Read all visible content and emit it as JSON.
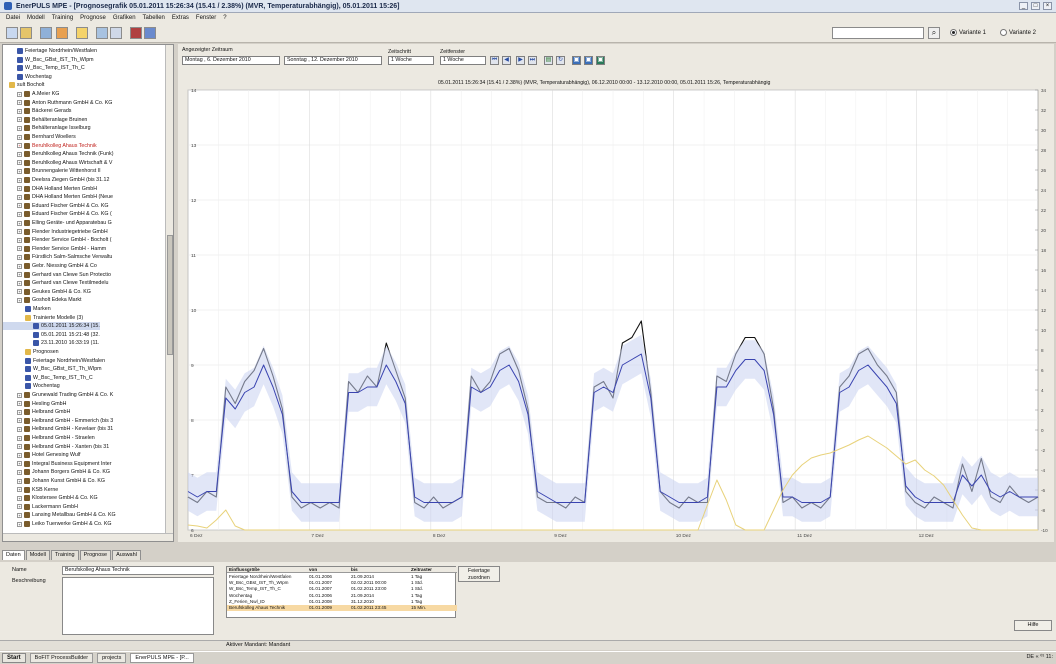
{
  "window": {
    "title": "EnerPULS MPE - [Prognosegrafik 05.01.2011 15:26:34 (15.41 / 2.38%) (MVR, Temperaturabhängig), 05.01.2011 15:26]"
  },
  "menu": [
    "Datei",
    "Modell",
    "Training",
    "Prognose",
    "Grafiken",
    "Tabellen",
    "Extras",
    "Fenster",
    "?"
  ],
  "toolbar": {
    "radio1": "Variante 1",
    "radio2": "Variante 2"
  },
  "tree": [
    {
      "label": "Feiertage Nordrhein/Westfalen",
      "type": "doc",
      "indent": 1
    },
    {
      "label": "W_Bsc_GBst_IST_Th_WIpm",
      "type": "doc",
      "indent": 1
    },
    {
      "label": "W_Bsc_Temp_IST_Th_C",
      "type": "doc",
      "indent": 1
    },
    {
      "label": "Wochentag",
      "type": "doc",
      "indent": 1
    },
    {
      "label": "sult Bocholt",
      "type": "folder",
      "indent": 0
    },
    {
      "label": "A.Meier KG",
      "type": "item",
      "indent": 1
    },
    {
      "label": "Anton Ruthmann GmbH & Co. KG",
      "type": "item",
      "indent": 1
    },
    {
      "label": "Bäckerei Gerads",
      "type": "item",
      "indent": 1
    },
    {
      "label": "Behälteranlage Bruinen",
      "type": "item",
      "indent": 1
    },
    {
      "label": "Behälteranlage Isselburg",
      "type": "item",
      "indent": 1
    },
    {
      "label": "Bernhard Woellers",
      "type": "item",
      "indent": 1
    },
    {
      "label": "Beruhlkolleg Ahaus Technik",
      "type": "item",
      "indent": 1,
      "hl": true
    },
    {
      "label": "Beruhlkolleg Ahaus Technik (Funk)",
      "type": "item",
      "indent": 1
    },
    {
      "label": "Beruhlkolleg Ahaus Wirtschaft & V",
      "type": "item",
      "indent": 1
    },
    {
      "label": "Brunnengalerie Wittenhorst II",
      "type": "item",
      "indent": 1
    },
    {
      "label": "Deelsra Ziegen GmbH (bis 31.12",
      "type": "item",
      "indent": 1
    },
    {
      "label": "DHA Holland Merten GmbH",
      "type": "item",
      "indent": 1
    },
    {
      "label": "DHA Holland Merten GmbH (Neue",
      "type": "item",
      "indent": 1
    },
    {
      "label": "Eduard Fischer GmbH & Co. KG",
      "type": "item",
      "indent": 1
    },
    {
      "label": "Eduard Fischer GmbH & Co. KG (",
      "type": "item",
      "indent": 1
    },
    {
      "label": "Elling Geräte- und Apparatebau G",
      "type": "item",
      "indent": 1
    },
    {
      "label": "Flender Industriegetriebe GmbH",
      "type": "item",
      "indent": 1
    },
    {
      "label": "Flender Service GmbH - Bocholt (",
      "type": "item",
      "indent": 1
    },
    {
      "label": "Flender Service GmbH - Hamm",
      "type": "item",
      "indent": 1
    },
    {
      "label": "Fürstlich Salm-Salmsche Verwaltu",
      "type": "item",
      "indent": 1
    },
    {
      "label": "Gebr. Niessing GmbH & Co",
      "type": "item",
      "indent": 1
    },
    {
      "label": "Gerhard van Clewe Sun Protectio",
      "type": "item",
      "indent": 1
    },
    {
      "label": "Gerhard van Clewe Textilmedelu",
      "type": "item",
      "indent": 1
    },
    {
      "label": "Geukes GmbH & Co. KG",
      "type": "item",
      "indent": 1
    },
    {
      "label": "Gosholt Edeka Markt",
      "type": "item",
      "indent": 1
    },
    {
      "label": "Marken",
      "type": "doc",
      "indent": 2
    },
    {
      "label": "Trainierte Modelle (3)",
      "type": "folder",
      "indent": 2
    },
    {
      "label": "05.01.2011 15:26:34 (15.",
      "type": "doc",
      "indent": 3,
      "sel": true
    },
    {
      "label": "05.01.2011 15:21:48 (32.",
      "type": "doc",
      "indent": 3
    },
    {
      "label": "23.11.2010 16:33:19 (11.",
      "type": "doc",
      "indent": 3
    },
    {
      "label": "Prognosen",
      "type": "folder",
      "indent": 2
    },
    {
      "label": "Feiertage Nordrhein/Westfalen",
      "type": "doc",
      "indent": 2
    },
    {
      "label": "W_Bsc_GBst_IST_Th_WIpm",
      "type": "doc",
      "indent": 2
    },
    {
      "label": "W_Bsc_Temp_IST_Th_C",
      "type": "doc",
      "indent": 2
    },
    {
      "label": "Wochentag",
      "type": "doc",
      "indent": 2
    },
    {
      "label": "Grunewald Trading GmbH & Co. K",
      "type": "item",
      "indent": 1
    },
    {
      "label": "Hesling GmbH",
      "type": "item",
      "indent": 1
    },
    {
      "label": "Helbrand GmbH",
      "type": "item",
      "indent": 1
    },
    {
      "label": "Helbrand GmbH - Emmerich (bis 3",
      "type": "item",
      "indent": 1
    },
    {
      "label": "Helbrand GmbH - Kevelaer (bis 31",
      "type": "item",
      "indent": 1
    },
    {
      "label": "Helbrand GmbH - Straelen",
      "type": "item",
      "indent": 1
    },
    {
      "label": "Helbrand GmbH - Xanten (bis 31",
      "type": "item",
      "indent": 1
    },
    {
      "label": "Hotel Genesing Wulf",
      "type": "item",
      "indent": 1
    },
    {
      "label": "Integral Business Equipment Inter",
      "type": "item",
      "indent": 1
    },
    {
      "label": "Johann Borgers GmbH & Co. KG",
      "type": "item",
      "indent": 1
    },
    {
      "label": "Johann Kunst GmbH & Co. KG",
      "type": "item",
      "indent": 1
    },
    {
      "label": "KSB Kerne",
      "type": "item",
      "indent": 1
    },
    {
      "label": "Klostersee GmbH & Co. KG",
      "type": "item",
      "indent": 1
    },
    {
      "label": "Lackermann GmbH",
      "type": "item",
      "indent": 1
    },
    {
      "label": "Lansing Metallbau GmbH & Co. KG",
      "type": "item",
      "indent": 1
    },
    {
      "label": "Leiko Tuerwerke GmbH & Co. KG",
      "type": "item",
      "indent": 1
    }
  ],
  "tabs": [
    "Daten",
    "Modell",
    "Training",
    "Prognose",
    "Auswahl"
  ],
  "controls": {
    "zeitraum_label": "Angezeigter Zeitraum",
    "from": "Montag , 6. Dezember 2010",
    "to": "Sonntag , 12. Dezember 2010",
    "zeitschritt_label": "Zeitschritt",
    "zeitschritt": "1 Woche",
    "zeitfenster_label": "Zeitfenster",
    "zeitfenster": "1 Woche"
  },
  "plot_title": "05.01.2011 15:26:34 (15.41 / 2.38%) (MVR, Temperaturabhängig), 06.12.2010 00:00 - 13.12.2010 00:00, 05.01.2011 15:26, Temperaturabhängig",
  "chart_data": {
    "type": "line",
    "x_labels": [
      "6 Dez",
      "7 Dez",
      "8 Dez",
      "9 Dez",
      "10 Dez",
      "11 Dez",
      "12 Dez"
    ],
    "y_left_ticks": [
      "6",
      "7",
      "8",
      "9",
      "10",
      "11",
      "12",
      "13",
      "14"
    ],
    "y_right_ticks": [
      "-10",
      "-8",
      "-6",
      "-4",
      "-2",
      "0",
      "2",
      "4",
      "6",
      "8",
      "10",
      "12",
      "14",
      "16",
      "18",
      "20",
      "22",
      "24",
      "26",
      "28",
      "30",
      "32",
      "34"
    ],
    "ylim_left": [
      6,
      14
    ],
    "ylim_right": [
      -10,
      34
    ],
    "grid": true,
    "series": [
      {
        "color": "#111111",
        "values": [
          6.6,
          6.5,
          6.7,
          6.6,
          8.6,
          8.3,
          8.7,
          8.9,
          9.3,
          8.8,
          8.2,
          6.6,
          6.4,
          6.5,
          6.4,
          6.5,
          6.4,
          8.7,
          8.5,
          8.8,
          8.6,
          9.4,
          8.9,
          8.4,
          6.5,
          6.4,
          6.6,
          6.4,
          6.5,
          6.6,
          8.8,
          8.5,
          8.7,
          9.2,
          9.3,
          8.9,
          8.2,
          6.6,
          6.5,
          6.5,
          6.4,
          6.6,
          6.5,
          8.6,
          8.7,
          8.4,
          9.4,
          9.5,
          9.8,
          8.5,
          6.7,
          6.5,
          6.4,
          6.6,
          6.5,
          6.5,
          8.8,
          8.7,
          9.2,
          9.5,
          9.5,
          9.2,
          8.2,
          6.5,
          6.6,
          6.4,
          6.5,
          6.4,
          6.6,
          8.6,
          8.8,
          9.2,
          9.3,
          9.0,
          8.8,
          8.5,
          6.7,
          6.5,
          6.4,
          6.6,
          6.5,
          6.4,
          7.2,
          6.7,
          7.3,
          6.6,
          6.5,
          6.8,
          6.6,
          6.5,
          6.6
        ]
      },
      {
        "color": "#3a44b0",
        "values": [
          6.7,
          6.6,
          6.7,
          6.7,
          8.4,
          8.2,
          8.5,
          8.6,
          9.0,
          8.6,
          8.1,
          6.7,
          6.5,
          6.5,
          6.5,
          6.5,
          6.5,
          8.5,
          8.5,
          8.6,
          8.6,
          9.0,
          8.7,
          8.3,
          6.6,
          6.5,
          6.5,
          6.5,
          6.5,
          6.6,
          8.6,
          8.5,
          8.6,
          8.9,
          9.0,
          8.7,
          8.1,
          6.7,
          6.6,
          6.5,
          6.5,
          6.5,
          6.5,
          8.5,
          8.6,
          8.5,
          9.0,
          9.1,
          9.2,
          8.4,
          6.7,
          6.6,
          6.5,
          6.5,
          6.5,
          6.6,
          8.6,
          8.6,
          8.9,
          9.1,
          9.1,
          8.9,
          8.1,
          6.6,
          6.6,
          6.5,
          6.5,
          6.5,
          6.6,
          8.5,
          8.6,
          8.9,
          9.0,
          8.8,
          8.6,
          8.3,
          6.8,
          6.6,
          6.5,
          6.5,
          6.5,
          6.5,
          7.0,
          6.8,
          7.0,
          6.7,
          6.6,
          6.7,
          6.6,
          6.6,
          6.6
        ]
      },
      {
        "color": "#e8d27a",
        "values": [
          -9.5,
          -9.6,
          -9.8,
          -9.0,
          -8.0,
          -9.6,
          -10,
          -10,
          -10,
          -10,
          -10,
          -10,
          -10,
          -10,
          -10,
          -10,
          -10,
          -10,
          -10,
          -10,
          -10,
          -10,
          -10,
          -10,
          -10,
          -10,
          -10,
          -10,
          -10,
          -10,
          -10,
          -10,
          -10,
          -10,
          -10,
          -10,
          -10,
          -10,
          -10,
          -10,
          -10,
          -10,
          -10,
          -10,
          -10,
          -10,
          -10,
          -10,
          -10,
          -10,
          -10,
          -10,
          -10,
          -10,
          -10,
          -7.5,
          -5.0,
          -7.0,
          -9.5,
          -10,
          -10,
          -10,
          -8.0,
          -6.0,
          -4.5,
          -3.5,
          -2.8,
          -2.5,
          -2.3,
          -1.9,
          -1.5,
          -1.0,
          -0.6,
          -1.2,
          -1.8,
          -2.6,
          -3.4,
          -3.0,
          -4.0,
          -4.6,
          -5.5,
          -7.0,
          -8.5,
          -9.8,
          -10,
          -10,
          -10,
          -10,
          -10,
          -10,
          -10
        ]
      }
    ]
  },
  "props": {
    "name_label": "Name",
    "name_value": "Berufskolleg Ahaus Technik",
    "desc_label": "Beschreibung",
    "feiertage_btn": "Feiertage zuordnen",
    "hilfe_btn": "Hilfe"
  },
  "table": {
    "headers": [
      "Einflussgröße",
      "von",
      "bis",
      "Zeitraster"
    ],
    "rows": [
      [
        "Feiertage Nordrhein/Westfalen",
        "01.01.2006",
        "21.09.2014",
        "1 Tag"
      ],
      [
        "W_Bsc_GBst_IST_Th_WIpm",
        "01.01.2007",
        "02.02.2011 00:00",
        "1 Std."
      ],
      [
        "W_Bsc_Temp_IST_Th_C",
        "01.01.2007",
        "01.02.2011 23:00",
        "1 Std."
      ],
      [
        "Wochentag",
        "01.01.2006",
        "21.09.2014",
        "1 Tag"
      ],
      [
        "Z_Ferien_Nwl_ID",
        "01.01.2008",
        "31.12.2010",
        "1 Tag"
      ],
      [
        "Berufskolleg Ahaus Technik",
        "01.01.2009",
        "01.02.2011 23:45",
        "15 Min."
      ]
    ]
  },
  "status": {
    "text": "Aktiver Mandant: Mandant"
  },
  "taskbar": {
    "start": "Start",
    "tasks": [
      "BoFIT ProcessBuilder",
      "projects",
      "EnerPULS MPE - [P..."
    ],
    "tray": "DE « ⁰¹ 11:"
  }
}
